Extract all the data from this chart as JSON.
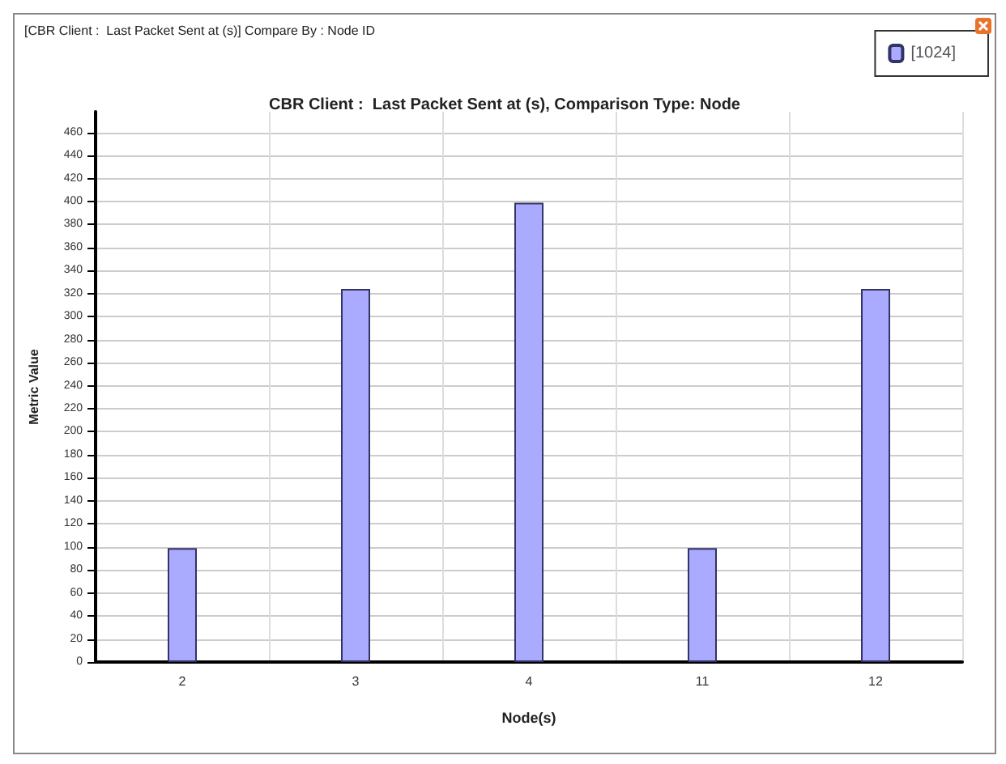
{
  "chart_data": {
    "type": "bar",
    "title": "CBR Client :  Last Packet Sent at (s), Comparison Type: Node",
    "xlabel": "Node(s)",
    "ylabel": "Metric Value",
    "annotations": [
      "[CBR Client :  Last Packet Sent at (s)] Compare By : Node ID"
    ],
    "categories": [
      "2",
      "3",
      "4",
      "11",
      "12"
    ],
    "series": [
      {
        "name": "[1024]",
        "color": "#aaaaff",
        "values": [
          99,
          324,
          399,
          99,
          324
        ]
      }
    ],
    "ylim": [
      0,
      478
    ],
    "yticks": [
      0,
      20,
      40,
      60,
      80,
      100,
      120,
      140,
      160,
      180,
      200,
      220,
      240,
      260,
      280,
      300,
      320,
      340,
      360,
      380,
      400,
      420,
      440,
      460
    ],
    "grid": true,
    "legend": "top right"
  }
}
